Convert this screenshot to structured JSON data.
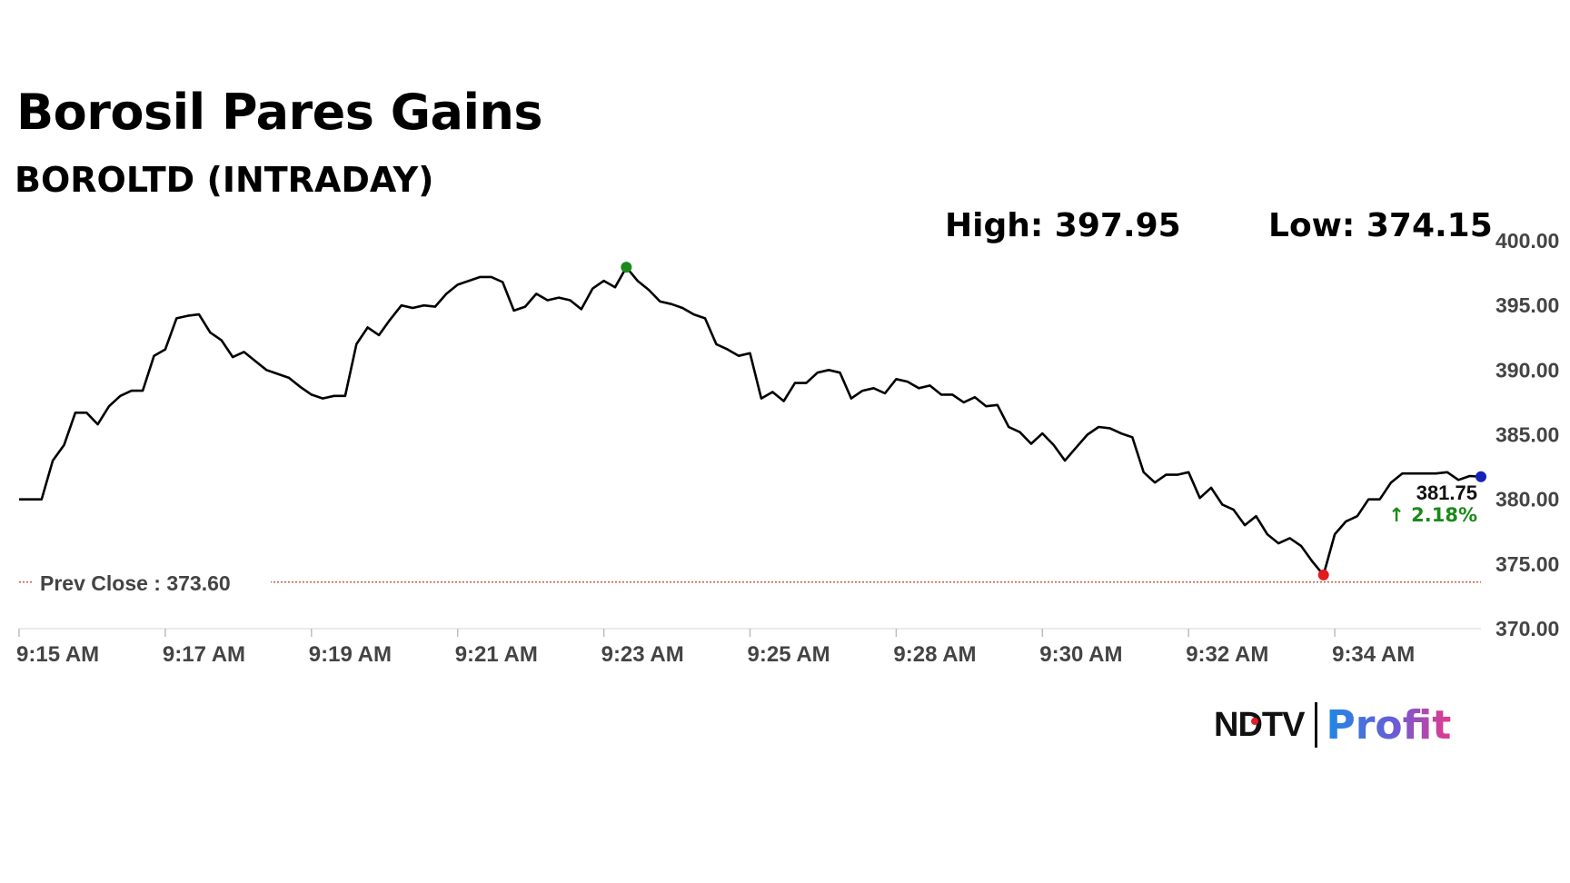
{
  "header": {
    "title": "Borosil Pares Gains",
    "subtitle": "BOROLTD (INTRADAY)",
    "high_text": "High: 397.95",
    "low_text": "Low: 374.15"
  },
  "logo": {
    "ndtv": "NDTV",
    "profit": "Profit"
  },
  "colors": {
    "line": "#000000",
    "high_marker": "#1a8a1a",
    "low_marker": "#e31b1b",
    "last_marker": "#1523b5",
    "prev_close_line": "#c0392b",
    "change_positive": "#1a8a1a"
  },
  "chart_data": {
    "type": "line",
    "title": "Borosil Pares Gains",
    "subtitle": "BOROLTD (INTRADAY)",
    "x_tick_labels": [
      "9:15 AM",
      "9:17 AM",
      "9:19 AM",
      "9:21 AM",
      "9:23 AM",
      "9:25 AM",
      "9:28 AM",
      "9:30 AM",
      "9:32 AM",
      "9:34 AM"
    ],
    "y_tick_labels": [
      "400.00",
      "395.00",
      "390.00",
      "385.00",
      "380.00",
      "375.00",
      "370.00"
    ],
    "ylim": [
      370,
      400
    ],
    "grid": false,
    "high": 397.95,
    "low": 374.15,
    "last_price_label": "381.75",
    "change_label": "↑ 2.18%",
    "prev_close": 373.6,
    "prev_close_label": "Prev Close : 373.60",
    "series": [
      {
        "values": [
          380,
          380,
          380,
          383,
          384.2,
          386.7,
          386.7,
          385.8,
          387.2,
          388,
          388.4,
          388.4,
          391.1,
          391.6,
          394,
          394.2,
          394.3,
          392.9,
          392.3,
          391,
          391.4,
          390.7,
          390,
          389.7,
          389.4,
          388.7,
          388.1,
          387.8,
          388,
          388,
          392,
          393.3,
          392.7,
          393.9,
          395,
          394.8,
          395,
          394.9,
          395.9,
          396.6,
          396.9,
          397.2,
          397.2,
          396.8,
          394.6,
          394.9,
          395.9,
          395.4,
          395.6,
          395.4,
          394.7,
          396.3,
          396.9,
          396.4,
          397.95,
          396.9,
          396.2,
          395.3,
          395.1,
          394.8,
          394.3,
          394,
          392,
          391.6,
          391.1,
          391.3,
          387.8,
          388.3,
          387.6,
          389,
          389,
          389.8,
          390,
          389.8,
          387.8,
          388.4,
          388.6,
          388.2,
          389.3,
          389.1,
          388.6,
          388.8,
          388.1,
          388.1,
          387.5,
          387.9,
          387.2,
          387.3,
          385.6,
          385.2,
          384.3,
          385.1,
          384.2,
          383,
          384,
          385,
          385.6,
          385.5,
          385.1,
          384.8,
          382.1,
          381.3,
          381.9,
          381.9,
          382.1,
          380.1,
          380.9,
          379.6,
          379.2,
          378,
          378.7,
          377.3,
          376.6,
          377,
          376.4,
          375.2,
          374.15,
          377.3,
          378.3,
          378.7,
          380,
          380,
          381.3,
          382,
          382,
          382,
          382,
          382.1,
          381.5,
          381.8,
          381.75
        ]
      }
    ]
  }
}
